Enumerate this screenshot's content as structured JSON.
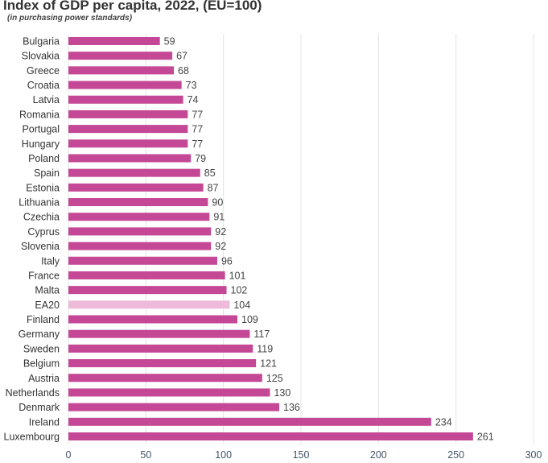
{
  "chart_data": {
    "type": "bar",
    "orientation": "horizontal",
    "title": "Index of GDP per capita, 2022, (EU=100)",
    "subtitle": "(in purchasing power standards)",
    "xlim": [
      0,
      300
    ],
    "xticks": [
      0,
      50,
      100,
      150,
      200,
      250,
      300
    ],
    "grid": true,
    "colors": {
      "bar": "#c44895",
      "highlight": "#edbbd9"
    },
    "highlight": "EA20",
    "categories": [
      "Bulgaria",
      "Slovakia",
      "Greece",
      "Croatia",
      "Latvia",
      "Romania",
      "Portugal",
      "Hungary",
      "Poland",
      "Spain",
      "Estonia",
      "Lithuania",
      "Czechia",
      "Cyprus",
      "Slovenia",
      "Italy",
      "France",
      "Malta",
      "EA20",
      "Finland",
      "Germany",
      "Sweden",
      "Belgium",
      "Austria",
      "Netherlands",
      "Denmark",
      "Ireland",
      "Luxembourg"
    ],
    "values": [
      59,
      67,
      68,
      73,
      74,
      77,
      77,
      77,
      79,
      85,
      87,
      90,
      91,
      92,
      92,
      96,
      101,
      102,
      104,
      109,
      117,
      119,
      121,
      125,
      130,
      136,
      234,
      261
    ]
  }
}
